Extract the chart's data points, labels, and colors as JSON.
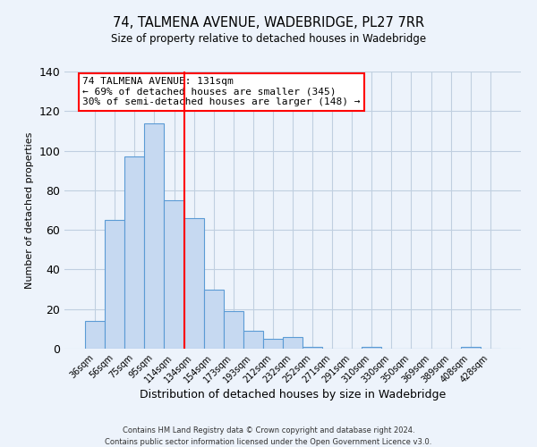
{
  "title": "74, TALMENA AVENUE, WADEBRIDGE, PL27 7RR",
  "subtitle": "Size of property relative to detached houses in Wadebridge",
  "xlabel": "Distribution of detached houses by size in Wadebridge",
  "ylabel": "Number of detached properties",
  "footnote1": "Contains HM Land Registry data © Crown copyright and database right 2024.",
  "footnote2": "Contains public sector information licensed under the Open Government Licence v3.0.",
  "bin_labels": [
    "36sqm",
    "56sqm",
    "75sqm",
    "95sqm",
    "114sqm",
    "134sqm",
    "154sqm",
    "173sqm",
    "193sqm",
    "212sqm",
    "232sqm",
    "252sqm",
    "271sqm",
    "291sqm",
    "310sqm",
    "330sqm",
    "350sqm",
    "369sqm",
    "389sqm",
    "408sqm",
    "428sqm"
  ],
  "bar_heights": [
    14,
    65,
    97,
    114,
    75,
    66,
    30,
    19,
    9,
    5,
    6,
    1,
    0,
    0,
    1,
    0,
    0,
    0,
    0,
    1,
    0
  ],
  "bar_color": "#c6d9f1",
  "bar_edge_color": "#5b9bd5",
  "grid_color": "#c0cfe0",
  "background_color": "#edf3fb",
  "vline_bin_index": 5,
  "vline_color": "red",
  "annotation_line1": "74 TALMENA AVENUE: 131sqm",
  "annotation_line2": "← 69% of detached houses are smaller (345)",
  "annotation_line3": "30% of semi-detached houses are larger (148) →",
  "annotation_box_color": "white",
  "annotation_box_edge_color": "red",
  "ylim": [
    0,
    140
  ],
  "yticks": [
    0,
    20,
    40,
    60,
    80,
    100,
    120,
    140
  ]
}
